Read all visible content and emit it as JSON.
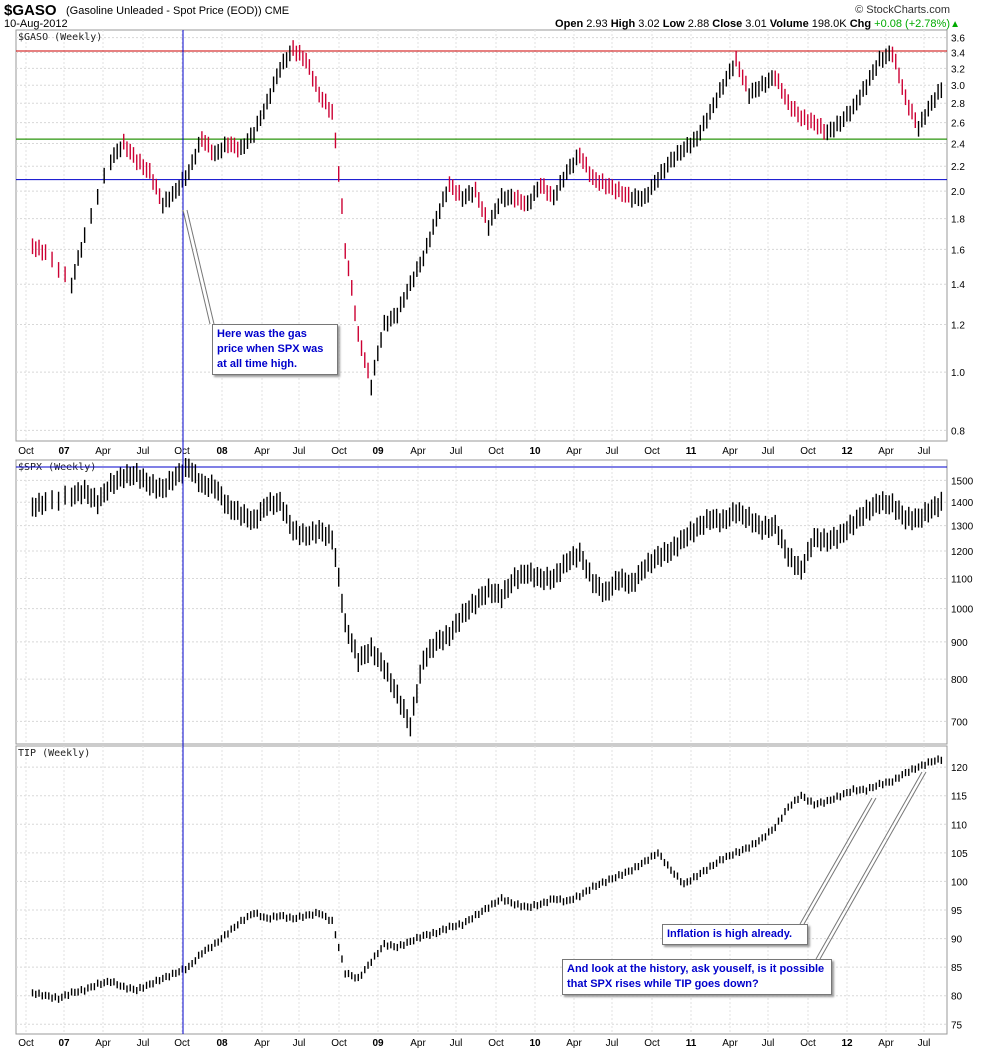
{
  "header": {
    "symbol": "$GASO",
    "description": "(Gasoline Unleaded - Spot Price (EOD))",
    "exchange": "CME",
    "date": "10-Aug-2012",
    "brand": "© StockCharts.com",
    "open_label": "Open",
    "open": "2.93",
    "high_label": "High",
    "high": "3.02",
    "low_label": "Low",
    "low": "2.88",
    "close_label": "Close",
    "close": "3.01",
    "volume_label": "Volume",
    "volume": "198.0K",
    "chg_label": "Chg",
    "chg": "+0.08 (+2.78%)",
    "chg_icon": "triangle-up-icon"
  },
  "annotations": [
    "Here was the gas price when SPX was at all time high.",
    "Inflation is high already.",
    "And look at the history, ask youself, is it possible that SPX rises while TIP goes down?"
  ],
  "chart_data": [
    {
      "type": "ohlc",
      "title": "$GASO (Weekly)",
      "scale": "log",
      "ylim": [
        0.78,
        3.65
      ],
      "yticks": [
        0.8,
        1.0,
        1.2,
        1.4,
        1.6,
        1.8,
        2.0,
        2.2,
        2.4,
        2.6,
        2.8,
        3.0,
        3.2,
        3.4,
        3.6
      ],
      "xticks": [
        "Oct",
        "07",
        "Apr",
        "Jul",
        "Oct",
        "08",
        "Apr",
        "Jul",
        "Oct",
        "09",
        "Apr",
        "Jul",
        "Oct",
        "10",
        "Apr",
        "Jul",
        "Oct",
        "11",
        "Apr",
        "Jul",
        "Oct",
        "12",
        "Apr",
        "Jul"
      ],
      "horizontal_lines": [
        {
          "value": 3.42,
          "color": "#cc0000"
        },
        {
          "value": 2.44,
          "color": "#cc0000"
        },
        {
          "value": 2.44,
          "color": "#00aa00"
        },
        {
          "value": 2.09,
          "color": "#0000cc"
        }
      ],
      "colors": {
        "up": "#000000",
        "down": "#cc0033"
      },
      "series": [
        {
          "x": [
            "2006-10",
            "2006-11",
            "2007-01",
            "2007-02",
            "2007-04",
            "2007-05",
            "2007-06",
            "2007-07",
            "2007-08",
            "2007-09",
            "2007-10",
            "2007-11",
            "2007-12",
            "2008-01",
            "2008-02",
            "2008-03",
            "2008-04",
            "2008-05",
            "2008-06",
            "2008-07",
            "2008-08",
            "2008-09",
            "2008-10",
            "2008-11",
            "2008-12",
            "2009-01",
            "2009-02",
            "2009-03",
            "2009-04",
            "2009-05",
            "2009-06",
            "2009-07",
            "2009-08",
            "2009-09",
            "2009-10",
            "2009-11",
            "2009-12",
            "2010-01",
            "2010-02",
            "2010-03",
            "2010-04",
            "2010-05",
            "2010-06",
            "2010-07",
            "2010-08",
            "2010-09",
            "2010-10",
            "2010-11",
            "2010-12",
            "2011-01",
            "2011-02",
            "2011-03",
            "2011-04",
            "2011-05",
            "2011-06",
            "2011-07",
            "2011-08",
            "2011-09",
            "2011-10",
            "2011-11",
            "2011-12",
            "2012-01",
            "2012-02",
            "2012-03",
            "2012-04",
            "2012-05",
            "2012-06",
            "2012-07",
            "2012-08"
          ],
          "close": [
            1.62,
            1.58,
            1.4,
            1.68,
            2.25,
            2.4,
            2.25,
            2.15,
            1.9,
            2.0,
            2.15,
            2.45,
            2.3,
            2.4,
            2.35,
            2.5,
            2.8,
            3.2,
            3.45,
            3.3,
            2.9,
            2.7,
            1.6,
            1.15,
            0.95,
            1.2,
            1.25,
            1.4,
            1.55,
            1.8,
            2.05,
            1.95,
            2.0,
            1.75,
            1.95,
            1.95,
            1.9,
            2.05,
            1.95,
            2.15,
            2.3,
            2.1,
            2.05,
            2.0,
            1.95,
            1.95,
            2.1,
            2.25,
            2.35,
            2.45,
            2.7,
            3.0,
            3.3,
            2.9,
            3.0,
            3.1,
            2.8,
            2.65,
            2.6,
            2.5,
            2.6,
            2.75,
            3.0,
            3.3,
            3.4,
            2.85,
            2.55,
            2.8,
            3.01
          ]
        }
      ]
    },
    {
      "type": "ohlc",
      "title": "$SPX (Weekly)",
      "scale": "log",
      "ylim": [
        660,
        1580
      ],
      "yticks": [
        700,
        800,
        900,
        1000,
        1100,
        1200,
        1300,
        1400,
        1500
      ],
      "xticks": [
        "Oct",
        "07",
        "Apr",
        "Jul",
        "Oct",
        "08",
        "Apr",
        "Jul",
        "Oct",
        "09",
        "Apr",
        "Jul",
        "Oct",
        "10",
        "Apr",
        "Jul",
        "Oct",
        "11",
        "Apr",
        "Jul",
        "Oct",
        "12",
        "Apr",
        "Jul"
      ],
      "horizontal_lines": [
        {
          "value": 1565,
          "color": "#0000cc"
        }
      ],
      "series": [
        {
          "x": [
            "2006-10",
            "2006-11",
            "2007-01",
            "2007-02",
            "2007-03",
            "2007-04",
            "2007-05",
            "2007-06",
            "2007-07",
            "2007-08",
            "2007-09",
            "2007-10",
            "2007-11",
            "2007-12",
            "2008-01",
            "2008-02",
            "2008-03",
            "2008-04",
            "2008-05",
            "2008-06",
            "2008-07",
            "2008-08",
            "2008-09",
            "2008-10",
            "2008-11",
            "2008-12",
            "2009-01",
            "2009-02",
            "2009-03",
            "2009-04",
            "2009-05",
            "2009-06",
            "2009-07",
            "2009-08",
            "2009-09",
            "2009-10",
            "2009-11",
            "2009-12",
            "2010-01",
            "2010-02",
            "2010-03",
            "2010-04",
            "2010-05",
            "2010-06",
            "2010-07",
            "2010-08",
            "2010-09",
            "2010-10",
            "2010-11",
            "2010-12",
            "2011-01",
            "2011-02",
            "2011-03",
            "2011-04",
            "2011-05",
            "2011-06",
            "2011-07",
            "2011-08",
            "2011-09",
            "2011-10",
            "2011-11",
            "2011-12",
            "2012-01",
            "2012-02",
            "2012-03",
            "2012-04",
            "2012-05",
            "2012-06",
            "2012-07",
            "2012-08"
          ],
          "close": [
            1380,
            1400,
            1430,
            1450,
            1400,
            1480,
            1520,
            1530,
            1480,
            1460,
            1520,
            1565,
            1480,
            1470,
            1380,
            1350,
            1320,
            1390,
            1400,
            1280,
            1260,
            1280,
            1250,
            950,
            850,
            880,
            830,
            760,
            690,
            850,
            900,
            920,
            980,
            1020,
            1060,
            1040,
            1100,
            1120,
            1100,
            1100,
            1160,
            1190,
            1090,
            1050,
            1100,
            1080,
            1140,
            1180,
            1200,
            1250,
            1290,
            1330,
            1320,
            1360,
            1330,
            1290,
            1300,
            1180,
            1130,
            1250,
            1240,
            1260,
            1310,
            1360,
            1400,
            1390,
            1330,
            1330,
            1370,
            1405
          ]
        }
      ]
    },
    {
      "type": "ohlc",
      "title": "TIP (Weekly)",
      "scale": "linear",
      "ylim": [
        74,
        123
      ],
      "yticks": [
        75,
        80,
        85,
        90,
        95,
        100,
        105,
        110,
        115,
        120
      ],
      "xticks": [
        "Oct",
        "07",
        "Apr",
        "Jul",
        "Oct",
        "08",
        "Apr",
        "Jul",
        "Oct",
        "09",
        "Apr",
        "Jul",
        "Oct",
        "10",
        "Apr",
        "Jul",
        "Oct",
        "11",
        "Apr",
        "Jul",
        "Oct",
        "12",
        "Apr",
        "Jul"
      ],
      "series": [
        {
          "x": [
            "2006-10",
            "2006-11",
            "2006-12",
            "2007-01",
            "2007-02",
            "2007-03",
            "2007-04",
            "2007-05",
            "2007-06",
            "2007-07",
            "2007-08",
            "2007-09",
            "2007-10",
            "2007-11",
            "2007-12",
            "2008-01",
            "2008-02",
            "2008-03",
            "2008-04",
            "2008-05",
            "2008-06",
            "2008-07",
            "2008-08",
            "2008-09",
            "2008-10",
            "2008-11",
            "2008-12",
            "2009-01",
            "2009-02",
            "2009-03",
            "2009-04",
            "2009-05",
            "2009-06",
            "2009-07",
            "2009-08",
            "2009-09",
            "2009-10",
            "2009-11",
            "2009-12",
            "2010-01",
            "2010-02",
            "2010-03",
            "2010-04",
            "2010-05",
            "2010-06",
            "2010-07",
            "2010-08",
            "2010-09",
            "2010-10",
            "2010-11",
            "2010-12",
            "2011-01",
            "2011-02",
            "2011-03",
            "2011-04",
            "2011-05",
            "2011-06",
            "2011-07",
            "2011-08",
            "2011-09",
            "2011-10",
            "2011-11",
            "2011-12",
            "2012-01",
            "2012-02",
            "2012-03",
            "2012-04",
            "2012-05",
            "2012-06",
            "2012-07",
            "2012-08"
          ],
          "close": [
            80.5,
            80.0,
            79.5,
            80.5,
            81.0,
            82.0,
            82.5,
            81.5,
            81.0,
            82.0,
            83.0,
            84.0,
            85.0,
            87.5,
            89.0,
            91.0,
            93.0,
            94.5,
            93.5,
            94.0,
            93.5,
            94.0,
            94.5,
            93.0,
            84.0,
            83.0,
            86.0,
            89.0,
            88.5,
            89.5,
            90.5,
            91.0,
            92.0,
            92.5,
            94.0,
            95.5,
            97.0,
            96.0,
            95.5,
            96.0,
            97.0,
            96.5,
            97.5,
            99.0,
            100.0,
            101.0,
            102.0,
            103.5,
            105.0,
            102.0,
            99.5,
            101.0,
            102.5,
            104.0,
            105.0,
            106.0,
            107.5,
            109.5,
            113.0,
            115.0,
            113.5,
            114.0,
            115.0,
            116.0,
            116.0,
            117.0,
            117.5,
            119.0,
            120.0,
            121.0,
            121.5
          ]
        }
      ]
    }
  ]
}
